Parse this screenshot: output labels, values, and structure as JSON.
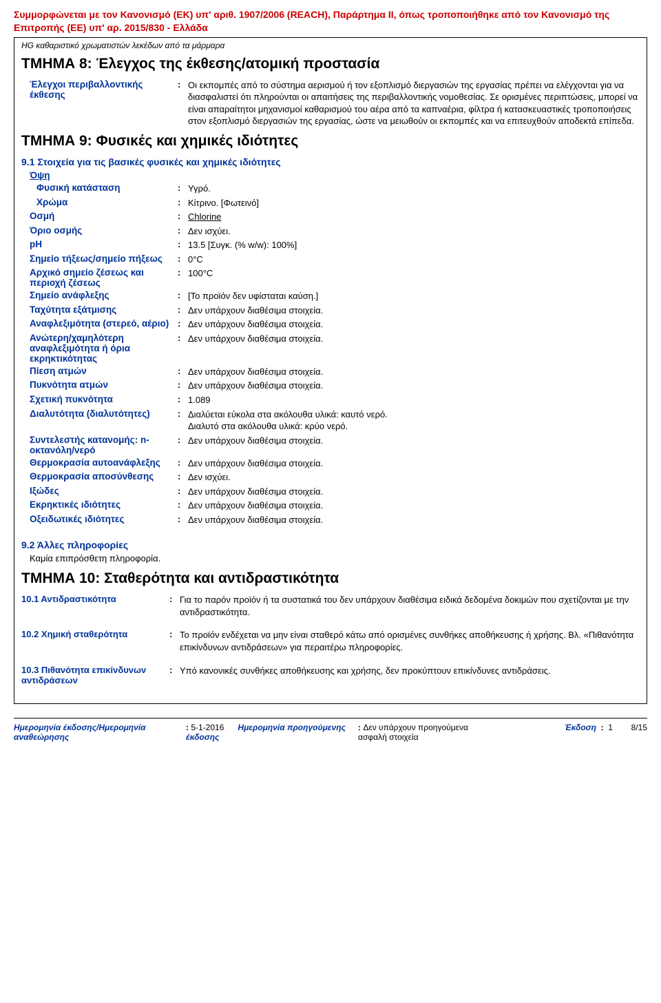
{
  "header": {
    "line1": "Συμμορφώνεται με τον Κανονισμό (ΕΚ) υπ' αριθ. 1907/2006 (REACH), Παράρτημα II, όπως τροποποιήθηκε από τον Κανονισμό της Επιτροπής (ΕΕ) υπ' αρ. 2015/830 - Ελλάδα",
    "product": "HG καθαριστικό χρωματιστών λεκέδων από τα μάρμαρα"
  },
  "section8": {
    "title": "ΤΜΗΜΑ 8: Έλεγχος της έκθεσης/ατομική προστασία",
    "row_label": "Έλεγχοι περιβαλλοντικής έκθεσης",
    "row_value": "Οι εκπομπές από το σύστημα αερισμού ή τον εξοπλισμό διεργασιών της εργασίας πρέπει να ελέγχονται για να διασφαλιστεί ότι πληρούνται οι απαιτήσεις της περιβαλλοντικής νομοθεσίας.  Σε ορισμένες περιπτώσεις, μπορεί να είναι απαραίτητοι μηχανισμοί καθαρισμού του αέρα από τα καπναέρια, φίλτρα ή κατασκευαστικές τροποποιήσεις στον εξοπλισμό διεργασιών της εργασίας, ώστε να μειωθούν οι εκπομπές και να επιτευχθούν αποδεκτά επίπεδα."
  },
  "section9": {
    "title": "ΤΜΗΜΑ 9: Φυσικές και χημικές ιδιότητες",
    "sub91": "9.1 Στοιχεία για τις βασικές φυσικές και χημικές ιδιότητες",
    "appearance": "Όψη",
    "rows": [
      {
        "label": "Φυσική κατάσταση",
        "value": "Υγρό.",
        "indent": true
      },
      {
        "label": "Χρώμα",
        "value": "Κίτρινο. [Φωτεινό]",
        "indent": true
      },
      {
        "label": "Οσμή",
        "value": "Chlorine",
        "underline": true
      },
      {
        "label": "Όριο οσμής",
        "value": "Δεν ισχύει."
      },
      {
        "label": "pH",
        "value": "13.5 [Συγκ. (% w/w): 100%]"
      },
      {
        "label": "Σημείο τήξεως/σημείο πήξεως",
        "value": "0°C"
      },
      {
        "label": "Αρχικό σημείο ζέσεως και περιοχή ζέσεως",
        "value": "100°C"
      },
      {
        "label": "Σημείο ανάφλεξης",
        "value": " [Το προϊόν δεν υφίσταται καύση.]"
      },
      {
        "label": "Ταχύτητα εξάτμισης",
        "value": "Δεν υπάρχουν διαθέσιμα στοιχεία."
      },
      {
        "label": "Αναφλεξιμότητα (στερεό, αέριο)",
        "value": "Δεν υπάρχουν διαθέσιμα στοιχεία."
      },
      {
        "label": "Ανώτερη/χαμηλότερη αναφλεξιμότητα ή όρια εκρηκτικότητας",
        "value": "Δεν υπάρχουν διαθέσιμα στοιχεία."
      },
      {
        "label": "Πίεση ατμών",
        "value": "Δεν υπάρχουν διαθέσιμα στοιχεία."
      },
      {
        "label": "Πυκνότητα ατμών",
        "value": "Δεν υπάρχουν διαθέσιμα στοιχεία."
      },
      {
        "label": "Σχετική πυκνότητα",
        "value": "1.089"
      },
      {
        "label": "Διαλυτότητα (διαλυτότητες)",
        "value": "Διαλύεται εύκολα στα ακόλουθα υλικά: καυτό νερό.\nΔιαλυτό στα ακόλουθα υλικά: κρύο νερό."
      },
      {
        "label": "Συντελεστής κατανομής: n-οκτανόλη/νερό",
        "value": "Δεν υπάρχουν διαθέσιμα στοιχεία."
      },
      {
        "label": "Θερμοκρασία αυτοανάφλεξης",
        "value": "Δεν υπάρχουν διαθέσιμα στοιχεία."
      },
      {
        "label": "Θερμοκρασία αποσύνθεσης",
        "value": "Δεν ισχύει."
      },
      {
        "label": "Ιξώδες",
        "value": "Δεν υπάρχουν διαθέσιμα στοιχεία."
      },
      {
        "label": "Εκρηκτικές ιδιότητες",
        "value": "Δεν υπάρχουν διαθέσιμα στοιχεία."
      },
      {
        "label": "Οξειδωτικές ιδιότητες",
        "value": "Δεν υπάρχουν διαθέσιμα στοιχεία."
      }
    ],
    "sub92": "9.2 Άλλες πληροφορίες",
    "sub92_text": "Καμία επιπρόσθετη πληροφορία."
  },
  "section10": {
    "title": "ΤΜΗΜΑ 10: Σταθερότητα και αντιδραστικότητα",
    "rows": [
      {
        "label": "10.1 Αντιδραστικότητα",
        "value": "Για το παρόν προϊόν ή τα συστατικά του δεν υπάρχουν διαθέσιμα ειδικά δεδομένα δοκιμών που σχετίζονται με την αντιδραστικότητα."
      },
      {
        "label": "10.2 Χημική σταθερότητα",
        "value": "Το προϊόν ενδέχεται να μην είναι σταθερό κάτω από ορισμένες συνθήκες αποθήκευσης ή χρήσης.  Βλ. «Πιθανότητα επικίνδυνων αντιδράσεων» για περαιτέρω πληροφορίες."
      },
      {
        "label": "10.3 Πιθανότητα επικίνδυνων αντιδράσεων",
        "value": "Υπό κανονικές συνθήκες αποθήκευσης και χρήσης, δεν προκύπτουν επικίνδυνες αντιδράσεις."
      }
    ]
  },
  "footer": {
    "date_label": "Ημερομηνία έκδοσης/Ημερομηνία αναθεώρησης",
    "date_value": "5-1-2016",
    "prev_label": "Ημερομηνία προηγούμενης έκδοσης",
    "prev_value": "Δεν υπάρχουν προηγούμενα ασφαλή στοιχεία",
    "version_label": "Έκδοση",
    "version_value": "1",
    "page": "8/15"
  }
}
